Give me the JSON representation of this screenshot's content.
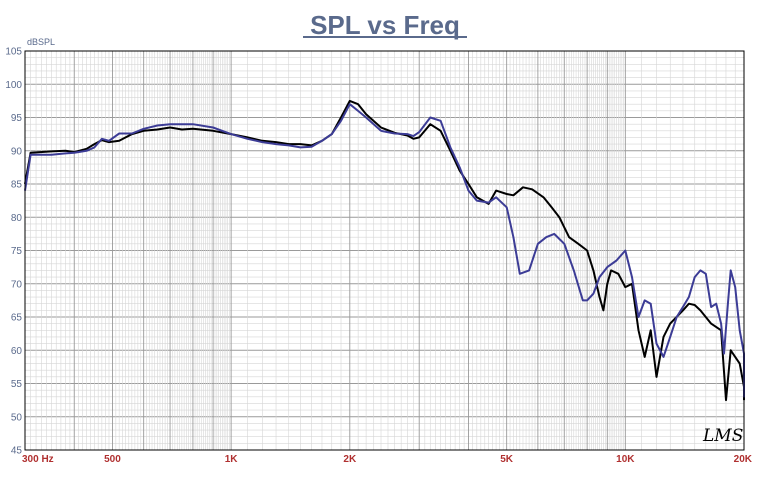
{
  "chart_data": {
    "type": "line",
    "title": "SPL vs Freq",
    "ylabel": "dBSPL",
    "xlabel": "",
    "x_scale": "log",
    "xlim": [
      300,
      20000
    ],
    "ylim": [
      45,
      105
    ],
    "y_ticks": [
      45,
      50,
      55,
      60,
      65,
      70,
      75,
      80,
      85,
      90,
      95,
      100,
      105
    ],
    "x_ticks": [
      {
        "value": 300,
        "label": "300  Hz"
      },
      {
        "value": 500,
        "label": "500"
      },
      {
        "value": 1000,
        "label": "1K"
      },
      {
        "value": 2000,
        "label": "2K"
      },
      {
        "value": 5000,
        "label": "5K"
      },
      {
        "value": 10000,
        "label": "10K"
      },
      {
        "value": 20000,
        "label": "20K"
      }
    ],
    "grid": true,
    "watermark": "LMS",
    "colors": {
      "title": "#5a6a8c",
      "grid": "#bdbdbd",
      "axis_x_labels": "#b03030",
      "axis_y_labels": "#5a6a8c",
      "series_black": "#000000",
      "series_blue": "#3c3c96"
    },
    "series": [
      {
        "color": "#000000",
        "points": [
          [
            300,
            85
          ],
          [
            310,
            89.7
          ],
          [
            350,
            89.9
          ],
          [
            380,
            90
          ],
          [
            400,
            89.8
          ],
          [
            430,
            90.3
          ],
          [
            450,
            91
          ],
          [
            470,
            91.6
          ],
          [
            490,
            91.3
          ],
          [
            520,
            91.5
          ],
          [
            560,
            92.5
          ],
          [
            600,
            93
          ],
          [
            650,
            93.2
          ],
          [
            700,
            93.5
          ],
          [
            750,
            93.2
          ],
          [
            800,
            93.3
          ],
          [
            900,
            93
          ],
          [
            1000,
            92.5
          ],
          [
            1100,
            92
          ],
          [
            1200,
            91.5
          ],
          [
            1300,
            91.3
          ],
          [
            1400,
            91
          ],
          [
            1500,
            91
          ],
          [
            1600,
            90.8
          ],
          [
            1700,
            91.5
          ],
          [
            1800,
            92.5
          ],
          [
            1900,
            95
          ],
          [
            2000,
            97.5
          ],
          [
            2100,
            97
          ],
          [
            2200,
            95.5
          ],
          [
            2400,
            93.5
          ],
          [
            2600,
            92.7
          ],
          [
            2800,
            92.3
          ],
          [
            2900,
            91.8
          ],
          [
            3000,
            92
          ],
          [
            3200,
            94
          ],
          [
            3400,
            93
          ],
          [
            3600,
            90
          ],
          [
            3800,
            87
          ],
          [
            4000,
            85
          ],
          [
            4200,
            83
          ],
          [
            4500,
            82
          ],
          [
            4700,
            84
          ],
          [
            5000,
            83.5
          ],
          [
            5200,
            83.3
          ],
          [
            5500,
            84.5
          ],
          [
            5800,
            84.2
          ],
          [
            6200,
            83
          ],
          [
            6500,
            81.5
          ],
          [
            6800,
            80
          ],
          [
            7200,
            77
          ],
          [
            7600,
            76
          ],
          [
            8000,
            75
          ],
          [
            8300,
            72
          ],
          [
            8600,
            68
          ],
          [
            8800,
            66
          ],
          [
            9000,
            70
          ],
          [
            9200,
            72
          ],
          [
            9600,
            71.5
          ],
          [
            10000,
            69.5
          ],
          [
            10400,
            70
          ],
          [
            10800,
            63
          ],
          [
            11200,
            59
          ],
          [
            11600,
            63
          ],
          [
            12000,
            56
          ],
          [
            12500,
            62
          ],
          [
            13000,
            64
          ],
          [
            14000,
            66
          ],
          [
            14500,
            67
          ],
          [
            15000,
            66.8
          ],
          [
            15500,
            66
          ],
          [
            16500,
            64
          ],
          [
            17500,
            63
          ],
          [
            18000,
            52.5
          ],
          [
            18500,
            60
          ],
          [
            19000,
            59
          ],
          [
            19500,
            58
          ],
          [
            20000,
            54.5
          ],
          [
            21000,
            53.5
          ],
          [
            21500,
            52.5
          ],
          [
            22000,
            52.5
          ]
        ]
      },
      {
        "color": "#3c3c96",
        "points": [
          [
            300,
            84
          ],
          [
            310,
            89.4
          ],
          [
            350,
            89.4
          ],
          [
            380,
            89.6
          ],
          [
            400,
            89.7
          ],
          [
            430,
            90
          ],
          [
            450,
            90.5
          ],
          [
            470,
            91.8
          ],
          [
            490,
            91.5
          ],
          [
            520,
            92.6
          ],
          [
            560,
            92.6
          ],
          [
            600,
            93.3
          ],
          [
            650,
            93.8
          ],
          [
            700,
            94
          ],
          [
            750,
            94
          ],
          [
            800,
            94
          ],
          [
            900,
            93.5
          ],
          [
            1000,
            92.5
          ],
          [
            1100,
            91.8
          ],
          [
            1200,
            91.3
          ],
          [
            1300,
            91
          ],
          [
            1400,
            90.8
          ],
          [
            1500,
            90.5
          ],
          [
            1600,
            90.6
          ],
          [
            1700,
            91.5
          ],
          [
            1800,
            92.5
          ],
          [
            1900,
            94.5
          ],
          [
            2000,
            97
          ],
          [
            2100,
            96
          ],
          [
            2200,
            95
          ],
          [
            2400,
            93
          ],
          [
            2600,
            92.6
          ],
          [
            2800,
            92.5
          ],
          [
            2900,
            92.2
          ],
          [
            3000,
            92.8
          ],
          [
            3200,
            95
          ],
          [
            3400,
            94.5
          ],
          [
            3600,
            90.5
          ],
          [
            3800,
            87.5
          ],
          [
            4000,
            84
          ],
          [
            4200,
            82.5
          ],
          [
            4500,
            82.2
          ],
          [
            4700,
            83
          ],
          [
            5000,
            81.5
          ],
          [
            5200,
            77
          ],
          [
            5400,
            71.5
          ],
          [
            5700,
            72
          ],
          [
            6000,
            76
          ],
          [
            6300,
            77
          ],
          [
            6600,
            77.5
          ],
          [
            7000,
            76
          ],
          [
            7400,
            72
          ],
          [
            7800,
            67.5
          ],
          [
            8000,
            67.5
          ],
          [
            8300,
            68.5
          ],
          [
            8600,
            71
          ],
          [
            9000,
            72.5
          ],
          [
            9500,
            73.5
          ],
          [
            10000,
            75
          ],
          [
            10400,
            71
          ],
          [
            10800,
            65
          ],
          [
            11200,
            67.5
          ],
          [
            11600,
            67
          ],
          [
            12000,
            61
          ],
          [
            12500,
            59
          ],
          [
            13000,
            62
          ],
          [
            13500,
            65
          ],
          [
            14000,
            66.5
          ],
          [
            14500,
            68
          ],
          [
            15000,
            71
          ],
          [
            15500,
            72
          ],
          [
            16000,
            71.5
          ],
          [
            16500,
            66.5
          ],
          [
            17000,
            67
          ],
          [
            17500,
            64
          ],
          [
            17800,
            59.5
          ],
          [
            18200,
            67
          ],
          [
            18500,
            72
          ],
          [
            19000,
            69.5
          ],
          [
            19500,
            63
          ],
          [
            20000,
            59.5
          ],
          [
            21000,
            53
          ],
          [
            21500,
            53.5
          ],
          [
            22000,
            53.5
          ]
        ]
      }
    ]
  }
}
